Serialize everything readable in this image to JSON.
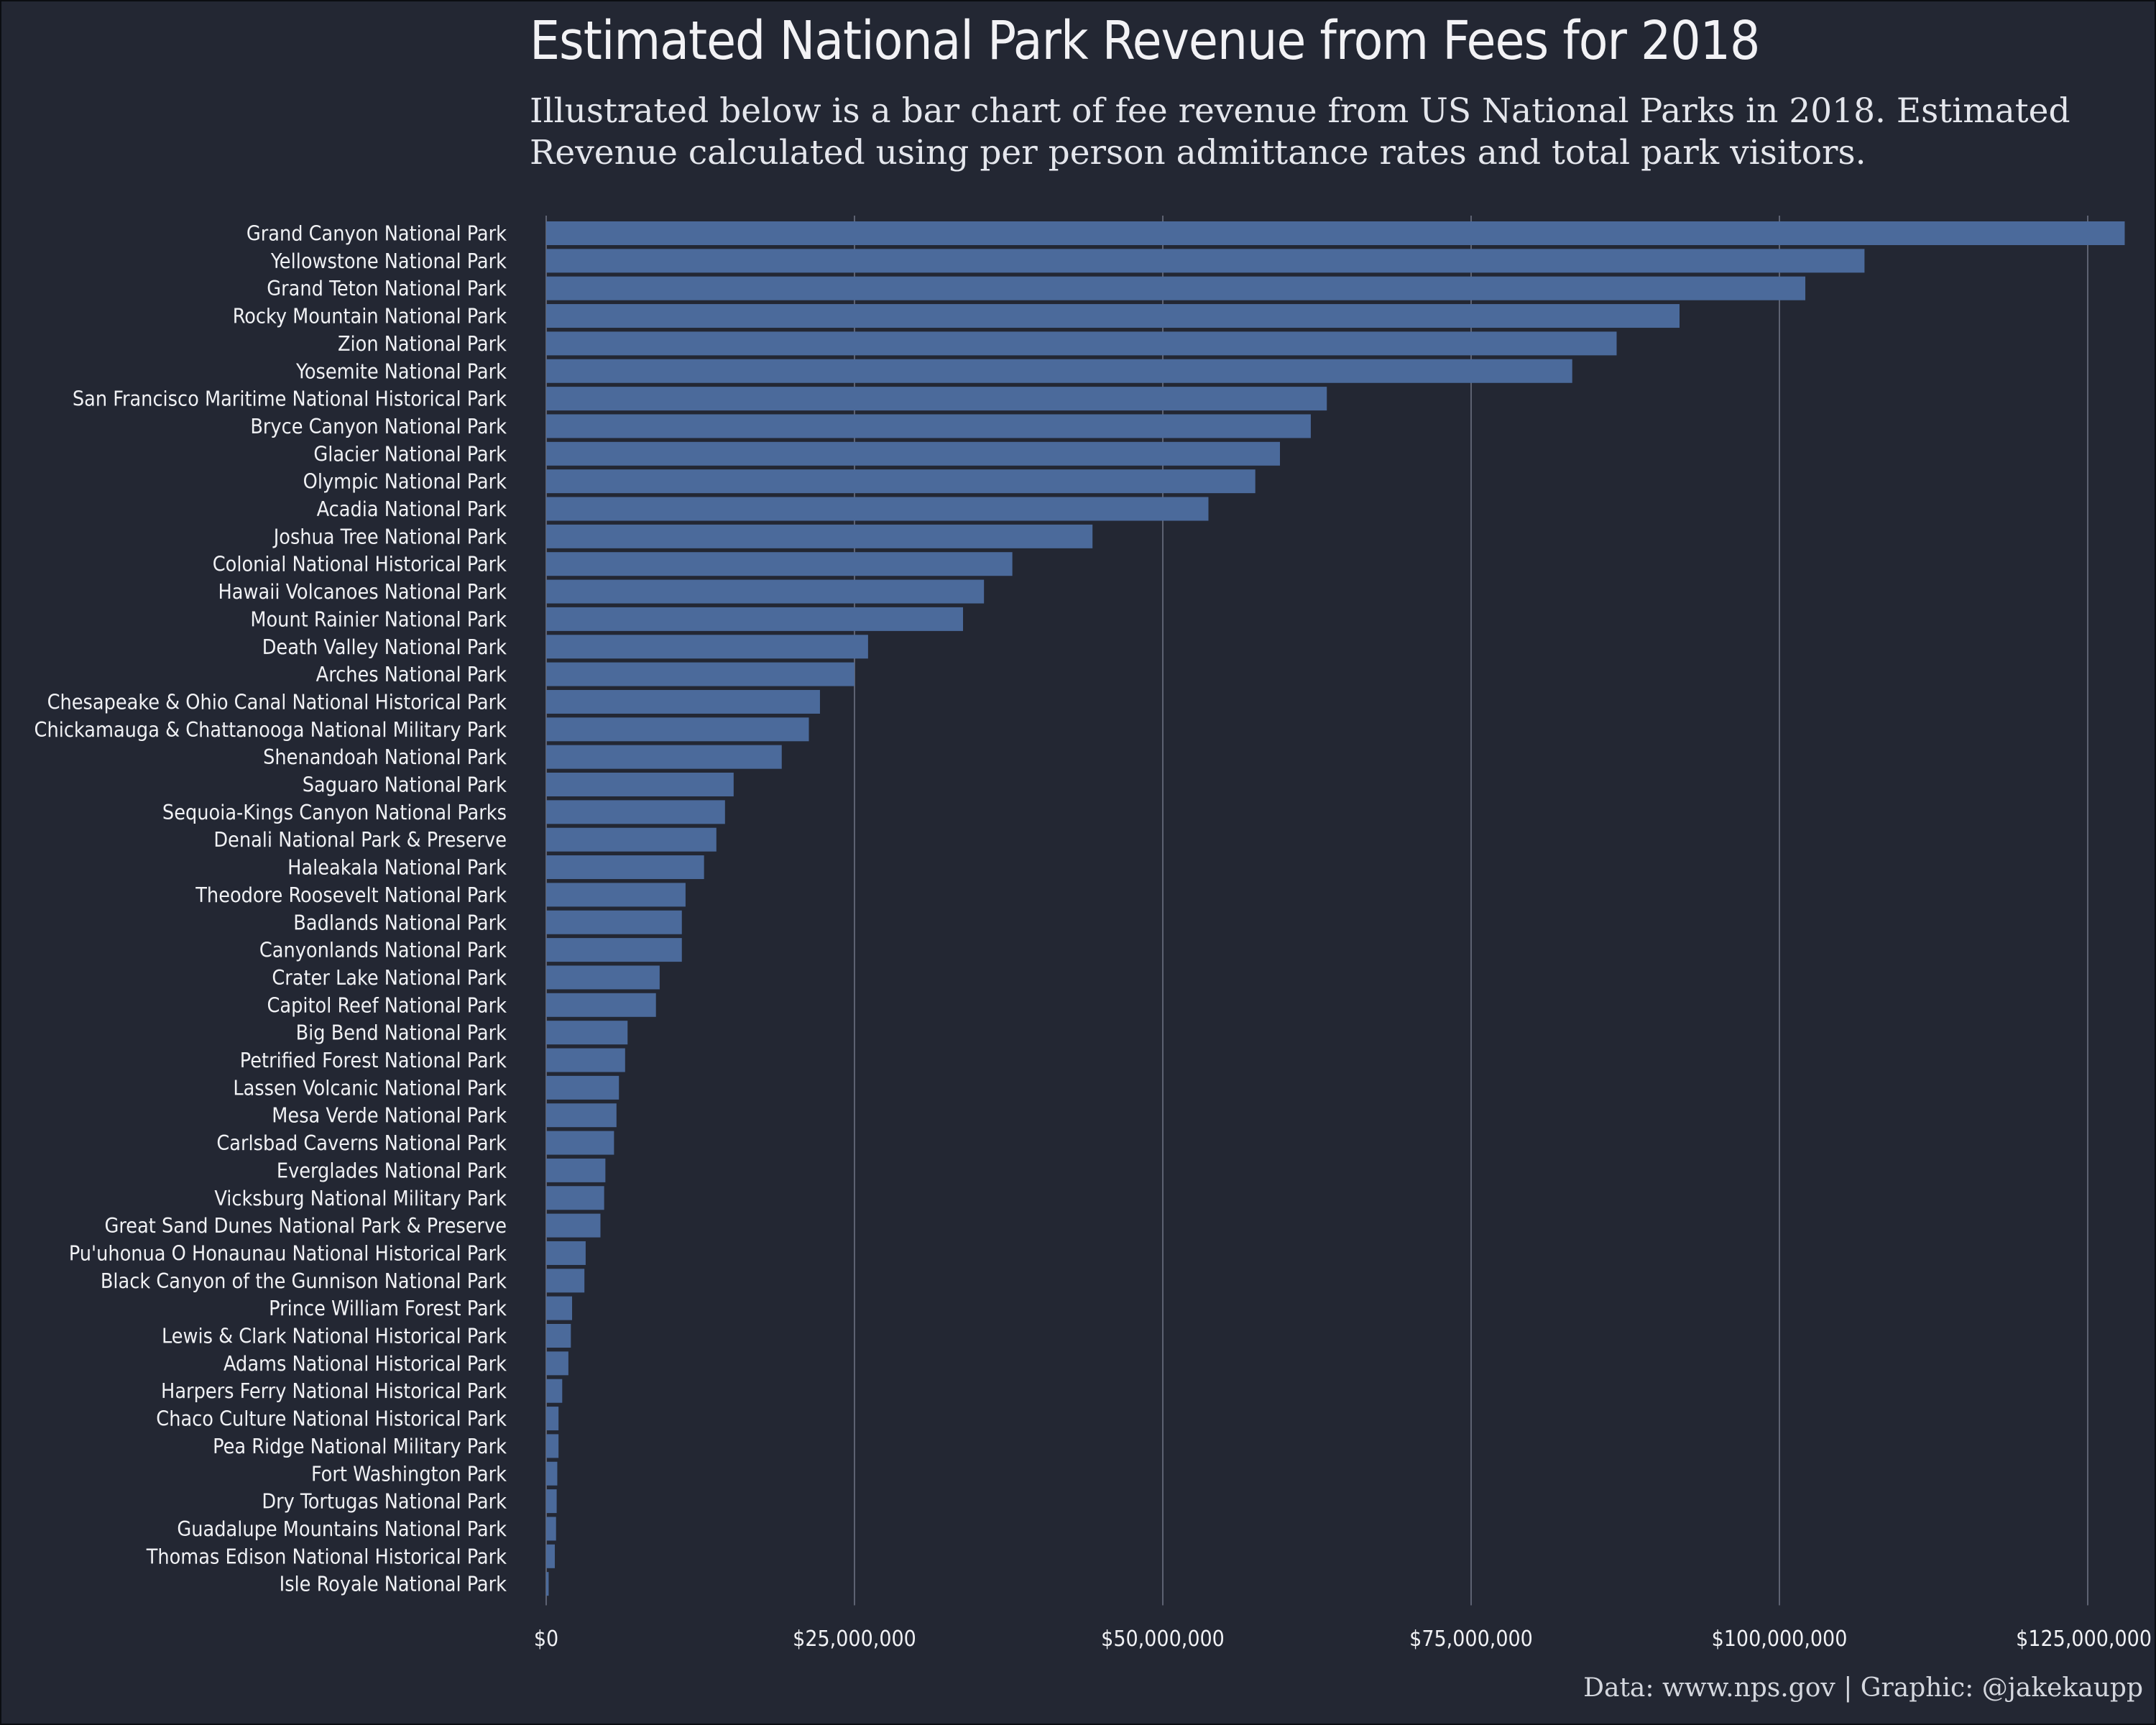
{
  "title": "Estimated National Park Revenue from Fees for 2018",
  "subtitle": "Illustrated below is a bar chart of fee revenue from US National Parks in 2018. Estimated Revenue calculated using per person admittance rates and total park visitors.",
  "caption": "Data: www.nps.gov | Graphic: @jakekaupp",
  "colors": {
    "background": "#232733",
    "bar": "#4b6a9b",
    "grid": "#5d6272",
    "text": "#f0f1f4"
  },
  "chart_data": {
    "type": "bar",
    "orientation": "horizontal",
    "title": "Estimated National Park Revenue from Fees for 2018",
    "xlabel": "",
    "ylabel": "",
    "xlim": [
      0,
      128000000
    ],
    "x_ticks": [
      0,
      25000000,
      50000000,
      75000000,
      100000000,
      125000000
    ],
    "x_tick_labels": [
      "$0",
      "$25,000,000",
      "$50,000,000",
      "$75,000,000",
      "$100,000,000",
      "$125,000,000"
    ],
    "grid": "vertical",
    "categories": [
      "Grand Canyon National Park",
      "Yellowstone National Park",
      "Grand Teton National Park",
      "Rocky Mountain National Park",
      "Zion National Park",
      "Yosemite National Park",
      "San Francisco Maritime National Historical Park",
      "Bryce Canyon National Park",
      "Glacier National Park",
      "Olympic National Park",
      "Acadia National Park",
      "Joshua Tree National Park",
      "Colonial National Historical Park",
      "Hawaii Volcanoes National Park",
      "Mount Rainier National Park",
      "Death Valley National Park",
      "Arches National Park",
      "Chesapeake & Ohio Canal National Historical Park",
      "Chickamauga & Chattanooga National Military Park",
      "Shenandoah National Park",
      "Saguaro National Park",
      "Sequoia-Kings Canyon National Parks",
      "Denali National Park & Preserve",
      "Haleakala National Park",
      "Theodore Roosevelt National Park",
      "Badlands National Park",
      "Canyonlands National Park",
      "Crater Lake National Park",
      "Capitol Reef National Park",
      "Big Bend National Park",
      "Petrified Forest National Park",
      "Lassen Volcanic National Park",
      "Mesa Verde National Park",
      "Carlsbad Caverns National Park",
      "Everglades National Park",
      "Vicksburg National Military Park",
      "Great Sand Dunes National Park & Preserve",
      "Pu'uhonua O Honaunau National Historical Park",
      "Black Canyon of the Gunnison National Park",
      "Prince William Forest Park",
      "Lewis & Clark National Historical Park",
      "Adams National Historical Park",
      "Harpers Ferry National Historical Park",
      "Chaco Culture National Historical Park",
      "Pea Ridge National Military Park",
      "Fort Washington Park",
      "Dry Tortugas National Park",
      "Guadalupe Mountains National Park",
      "Thomas Edison National Historical Park",
      "Isle Royale National Park"
    ],
    "values": [
      128000000,
      106900000,
      102100000,
      91900000,
      86800000,
      83200000,
      63300000,
      62000000,
      59500000,
      57500000,
      53700000,
      44300000,
      37800000,
      35500000,
      33800000,
      26100000,
      25000000,
      22200000,
      21300000,
      19100000,
      15200000,
      14500000,
      13800000,
      12800000,
      11300000,
      11000000,
      11000000,
      9200000,
      8900000,
      6600000,
      6400000,
      5900000,
      5700000,
      5500000,
      4800000,
      4700000,
      4400000,
      3200000,
      3100000,
      2100000,
      2000000,
      1800000,
      1300000,
      1000000,
      1000000,
      900000,
      850000,
      800000,
      700000,
      200000
    ]
  }
}
